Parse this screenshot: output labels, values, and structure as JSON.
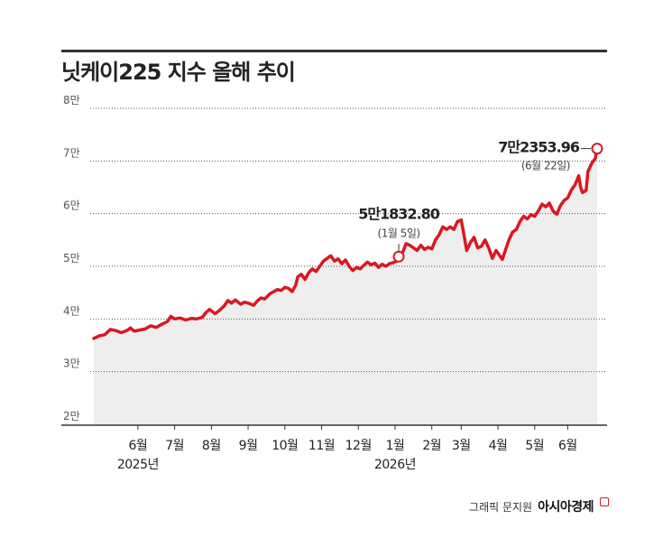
{
  "title": "닛케이225 지수 올해 추이",
  "credit": {
    "label": "그래픽 문지원",
    "brand": "아시아경제"
  },
  "colors": {
    "line": "#d71920",
    "area": "#eeeeee",
    "grid": "#555555",
    "text": "#222222"
  },
  "chart_data": {
    "type": "area",
    "unit": "만",
    "ylim": [
      20000,
      80000
    ],
    "y_ticks": [
      {
        "value": 20000,
        "label": "2만"
      },
      {
        "value": 30000,
        "label": "3만"
      },
      {
        "value": 40000,
        "label": "4만"
      },
      {
        "value": 50000,
        "label": "5만"
      },
      {
        "value": 60000,
        "label": "6만"
      },
      {
        "value": 70000,
        "label": "7만"
      },
      {
        "value": 80000,
        "label": "8만"
      }
    ],
    "x_ticks": [
      {
        "label": "6월",
        "t": 1.2
      },
      {
        "label": "7월",
        "t": 2.2
      },
      {
        "label": "8월",
        "t": 3.2
      },
      {
        "label": "9월",
        "t": 4.2
      },
      {
        "label": "10월",
        "t": 5.2
      },
      {
        "label": "11월",
        "t": 6.2
      },
      {
        "label": "12월",
        "t": 7.2
      },
      {
        "label": "1월",
        "t": 8.2
      },
      {
        "label": "2월",
        "t": 9.2
      },
      {
        "label": "3월",
        "t": 10.0
      },
      {
        "label": "4월",
        "t": 11.0
      },
      {
        "label": "5월",
        "t": 12.0
      },
      {
        "label": "6월",
        "t": 12.9
      }
    ],
    "year_labels": [
      {
        "label": "2025년",
        "t": 1.2
      },
      {
        "label": "2026년",
        "t": 8.2
      }
    ],
    "series": [
      {
        "values": [
          [
            0.0,
            36300
          ],
          [
            0.15,
            36800
          ],
          [
            0.3,
            37000
          ],
          [
            0.45,
            38000
          ],
          [
            0.6,
            37800
          ],
          [
            0.75,
            37400
          ],
          [
            0.9,
            37800
          ],
          [
            1.0,
            38300
          ],
          [
            1.1,
            37700
          ],
          [
            1.25,
            37900
          ],
          [
            1.4,
            38100
          ],
          [
            1.55,
            38700
          ],
          [
            1.7,
            38400
          ],
          [
            1.85,
            39000
          ],
          [
            2.0,
            39500
          ],
          [
            2.1,
            40500
          ],
          [
            2.2,
            40000
          ],
          [
            2.35,
            40200
          ],
          [
            2.5,
            39800
          ],
          [
            2.65,
            40100
          ],
          [
            2.8,
            40000
          ],
          [
            2.95,
            40300
          ],
          [
            3.05,
            41200
          ],
          [
            3.15,
            41800
          ],
          [
            3.3,
            41000
          ],
          [
            3.4,
            41500
          ],
          [
            3.55,
            42500
          ],
          [
            3.65,
            43500
          ],
          [
            3.75,
            43000
          ],
          [
            3.85,
            43600
          ],
          [
            4.0,
            42800
          ],
          [
            4.1,
            43200
          ],
          [
            4.2,
            43000
          ],
          [
            4.35,
            42600
          ],
          [
            4.45,
            43400
          ],
          [
            4.55,
            44000
          ],
          [
            4.65,
            43800
          ],
          [
            4.8,
            44800
          ],
          [
            4.9,
            45200
          ],
          [
            5.0,
            45600
          ],
          [
            5.1,
            45400
          ],
          [
            5.2,
            46000
          ],
          [
            5.3,
            45800
          ],
          [
            5.4,
            45200
          ],
          [
            5.5,
            46500
          ],
          [
            5.55,
            48000
          ],
          [
            5.65,
            48500
          ],
          [
            5.75,
            47500
          ],
          [
            5.85,
            48800
          ],
          [
            5.95,
            49500
          ],
          [
            6.05,
            49000
          ],
          [
            6.15,
            50000
          ],
          [
            6.25,
            51000
          ],
          [
            6.35,
            51500
          ],
          [
            6.45,
            52000
          ],
          [
            6.55,
            51000
          ],
          [
            6.65,
            51400
          ],
          [
            6.75,
            50500
          ],
          [
            6.85,
            51200
          ],
          [
            6.95,
            50000
          ],
          [
            7.05,
            49200
          ],
          [
            7.15,
            49800
          ],
          [
            7.25,
            49500
          ],
          [
            7.35,
            50200
          ],
          [
            7.45,
            50800
          ],
          [
            7.55,
            50300
          ],
          [
            7.65,
            50600
          ],
          [
            7.75,
            49800
          ],
          [
            7.85,
            50400
          ],
          [
            7.95,
            50000
          ],
          [
            8.05,
            50500
          ],
          [
            8.15,
            50700
          ],
          [
            8.25,
            51000
          ],
          [
            8.3,
            51832.8
          ],
          [
            8.4,
            52500
          ],
          [
            8.5,
            54300
          ],
          [
            8.6,
            54000
          ],
          [
            8.7,
            53500
          ],
          [
            8.8,
            53000
          ],
          [
            8.9,
            54000
          ],
          [
            9.0,
            53200
          ],
          [
            9.1,
            53600
          ],
          [
            9.2,
            53300
          ],
          [
            9.3,
            55000
          ],
          [
            9.4,
            56000
          ],
          [
            9.5,
            57500
          ],
          [
            9.6,
            57000
          ],
          [
            9.7,
            57500
          ],
          [
            9.8,
            57000
          ],
          [
            9.9,
            58500
          ],
          [
            10.0,
            58800
          ],
          [
            10.05,
            57000
          ],
          [
            10.15,
            53000
          ],
          [
            10.25,
            54500
          ],
          [
            10.35,
            55500
          ],
          [
            10.45,
            53500
          ],
          [
            10.55,
            53800
          ],
          [
            10.65,
            55000
          ],
          [
            10.75,
            53500
          ],
          [
            10.85,
            51500
          ],
          [
            10.95,
            53000
          ],
          [
            11.05,
            52000
          ],
          [
            11.12,
            51300
          ],
          [
            11.2,
            53000
          ],
          [
            11.3,
            55000
          ],
          [
            11.4,
            56500
          ],
          [
            11.5,
            57000
          ],
          [
            11.6,
            58500
          ],
          [
            11.7,
            59500
          ],
          [
            11.8,
            59000
          ],
          [
            11.9,
            59800
          ],
          [
            12.0,
            59500
          ],
          [
            12.1,
            60500
          ],
          [
            12.2,
            61800
          ],
          [
            12.3,
            61300
          ],
          [
            12.4,
            62000
          ],
          [
            12.5,
            60500
          ],
          [
            12.6,
            59900
          ],
          [
            12.7,
            61500
          ],
          [
            12.8,
            62500
          ],
          [
            12.9,
            63000
          ],
          [
            13.0,
            64500
          ],
          [
            13.1,
            65500
          ],
          [
            13.2,
            67200
          ],
          [
            13.25,
            65000
          ],
          [
            13.3,
            64000
          ],
          [
            13.4,
            64400
          ],
          [
            13.45,
            68000
          ],
          [
            13.55,
            69500
          ],
          [
            13.65,
            70500
          ],
          [
            13.7,
            72353.96
          ]
        ]
      }
    ],
    "annotations": [
      {
        "label": "5만1832.80",
        "sublabel": "(1월 5일)",
        "t": 8.3,
        "value": 51832.8
      },
      {
        "label": "7만2353.96",
        "sublabel": "(6월 22일)",
        "t": 13.7,
        "value": 72353.96
      }
    ],
    "grid": true
  }
}
